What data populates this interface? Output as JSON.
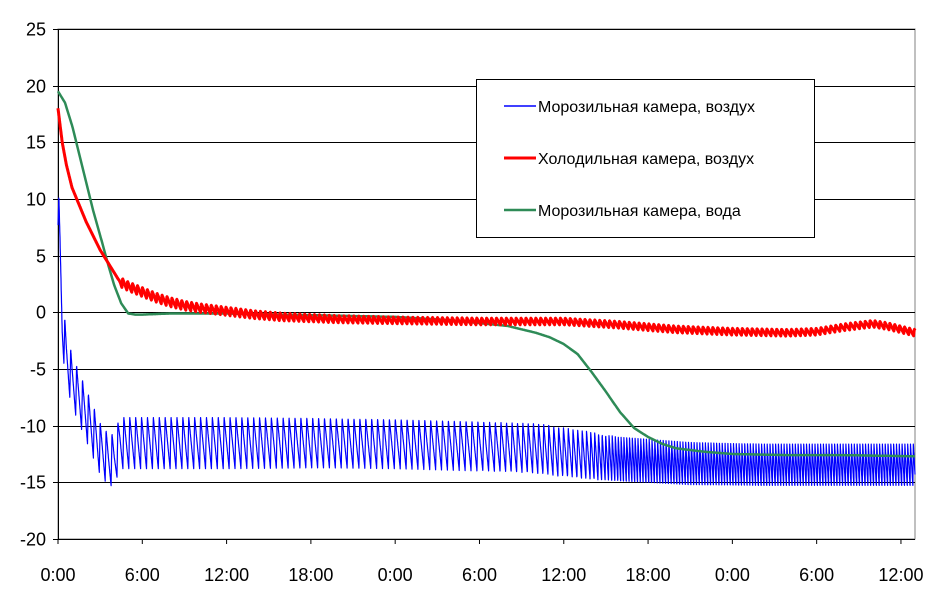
{
  "chart_data": {
    "type": "line",
    "title": "",
    "xlabel": "",
    "ylabel": "",
    "xlim_hours": [
      0,
      61
    ],
    "ylim": [
      -20,
      25
    ],
    "y_ticks": [
      25,
      20,
      15,
      10,
      5,
      0,
      -5,
      -10,
      -15,
      -20
    ],
    "x_ticks": [
      {
        "hour": 0,
        "label": "0:00"
      },
      {
        "hour": 6,
        "label": "6:00"
      },
      {
        "hour": 12,
        "label": "12:00"
      },
      {
        "hour": 18,
        "label": "18:00"
      },
      {
        "hour": 24,
        "label": "0:00"
      },
      {
        "hour": 30,
        "label": "6:00"
      },
      {
        "hour": 36,
        "label": "12:00"
      },
      {
        "hour": 42,
        "label": "18:00"
      },
      {
        "hour": 48,
        "label": "0:00"
      },
      {
        "hour": 54,
        "label": "6:00"
      },
      {
        "hour": 60,
        "label": "12:00"
      }
    ],
    "grid": {
      "horizontal": true,
      "vertical": false,
      "color": "#000000"
    },
    "legend_position": "top-right",
    "series": [
      {
        "name": "Морозильная камера, воздух",
        "color": "#0000ff",
        "oscillating": true,
        "points": [
          [
            0.0,
            10
          ],
          [
            0.15,
            5
          ],
          [
            0.3,
            -1
          ],
          [
            0.6,
            -4
          ],
          [
            1.0,
            -6
          ],
          [
            1.5,
            -7.5
          ],
          [
            2.0,
            -9
          ],
          [
            2.5,
            -10.5
          ],
          [
            3.0,
            -12
          ],
          [
            3.6,
            -13
          ],
          [
            4.0,
            -13
          ],
          [
            4.4,
            -11.5
          ],
          [
            4.8,
            -11.5
          ],
          [
            10.0,
            -11.5
          ],
          [
            18.0,
            -11.5
          ],
          [
            24.0,
            -11.6
          ],
          [
            30.0,
            -11.8
          ],
          [
            34.0,
            -12
          ],
          [
            37.0,
            -12.5
          ],
          [
            40.0,
            -13
          ],
          [
            45.0,
            -13.4
          ],
          [
            50.0,
            -13.5
          ],
          [
            55.0,
            -13.5
          ],
          [
            61.0,
            -13.5
          ]
        ],
        "amplitude": [
          [
            4.4,
            2.3
          ],
          [
            12.0,
            2.3
          ],
          [
            20.0,
            2.2
          ],
          [
            30.0,
            2.2
          ],
          [
            35.0,
            2.2
          ],
          [
            38.0,
            2.1
          ],
          [
            40.0,
            2.0
          ],
          [
            48.0,
            1.9
          ],
          [
            61.0,
            1.9
          ]
        ],
        "period_hours": [
          [
            4.4,
            0.42
          ],
          [
            30.0,
            0.42
          ],
          [
            37.0,
            0.33
          ],
          [
            40.0,
            0.2
          ],
          [
            61.0,
            0.2
          ]
        ]
      },
      {
        "name": "Холодильная камера, воздух",
        "color": "#ff0000",
        "oscillating": true,
        "points": [
          [
            0.0,
            18
          ],
          [
            0.3,
            15
          ],
          [
            0.6,
            13
          ],
          [
            1.0,
            11
          ],
          [
            1.5,
            9.5
          ],
          [
            2.0,
            8
          ],
          [
            3.0,
            5.5
          ],
          [
            4.0,
            3.5
          ],
          [
            4.4,
            2.7
          ],
          [
            5.0,
            2.3
          ],
          [
            6.0,
            1.8
          ],
          [
            7.0,
            1.3
          ],
          [
            8.0,
            0.9
          ],
          [
            9.0,
            0.6
          ],
          [
            10.0,
            0.4
          ],
          [
            12.0,
            0.1
          ],
          [
            14.0,
            -0.2
          ],
          [
            16.0,
            -0.4
          ],
          [
            18.0,
            -0.5
          ],
          [
            20.0,
            -0.6
          ],
          [
            24.0,
            -0.7
          ],
          [
            30.0,
            -0.8
          ],
          [
            36.0,
            -0.8
          ],
          [
            40.0,
            -1.1
          ],
          [
            44.0,
            -1.5
          ],
          [
            48.0,
            -1.7
          ],
          [
            52.0,
            -1.8
          ],
          [
            54.0,
            -1.7
          ],
          [
            56.0,
            -1.3
          ],
          [
            58.0,
            -1.0
          ],
          [
            59.0,
            -1.2
          ],
          [
            60.0,
            -1.5
          ],
          [
            61.0,
            -1.8
          ]
        ],
        "amplitude": [
          [
            0.0,
            0.0
          ],
          [
            4.3,
            0.0
          ],
          [
            4.5,
            0.4
          ],
          [
            8.0,
            0.4
          ],
          [
            14.0,
            0.35
          ],
          [
            24.0,
            0.3
          ],
          [
            36.0,
            0.3
          ],
          [
            61.0,
            0.3
          ]
        ],
        "period_hours": [
          [
            0.0,
            0.35
          ],
          [
            61.0,
            0.35
          ]
        ]
      },
      {
        "name": "Морозильная камера, вода",
        "color": "#2e8b57",
        "oscillating": false,
        "points": [
          [
            0.0,
            19.5
          ],
          [
            0.5,
            18.5
          ],
          [
            1.0,
            16.5
          ],
          [
            1.5,
            14
          ],
          [
            2.0,
            11.5
          ],
          [
            2.5,
            9
          ],
          [
            3.0,
            6.8
          ],
          [
            3.5,
            4.5
          ],
          [
            4.0,
            2.4
          ],
          [
            4.5,
            0.8
          ],
          [
            5.0,
            -0.1
          ],
          [
            5.5,
            -0.2
          ],
          [
            6.0,
            -0.2
          ],
          [
            8.0,
            -0.1
          ],
          [
            10.0,
            -0.1
          ],
          [
            12.0,
            -0.1
          ],
          [
            16.0,
            -0.2
          ],
          [
            20.0,
            -0.3
          ],
          [
            24.0,
            -0.4
          ],
          [
            28.0,
            -0.7
          ],
          [
            32.0,
            -1.2
          ],
          [
            34.0,
            -1.8
          ],
          [
            35.0,
            -2.2
          ],
          [
            36.0,
            -2.8
          ],
          [
            37.0,
            -3.7
          ],
          [
            38.0,
            -5.3
          ],
          [
            39.0,
            -7
          ],
          [
            40.0,
            -8.8
          ],
          [
            41.0,
            -10.2
          ],
          [
            42.0,
            -11
          ],
          [
            43.0,
            -11.6
          ],
          [
            44.0,
            -12
          ],
          [
            46.0,
            -12.3
          ],
          [
            48.0,
            -12.5
          ],
          [
            52.0,
            -12.6
          ],
          [
            56.0,
            -12.6
          ],
          [
            61.0,
            -12.7
          ]
        ]
      }
    ]
  }
}
